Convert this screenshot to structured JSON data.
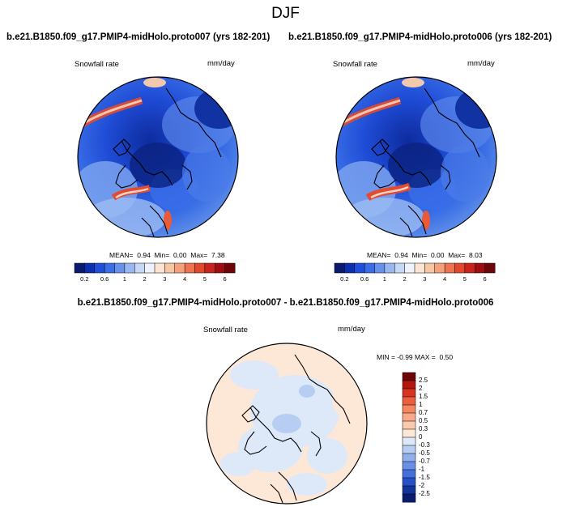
{
  "title": "DJF",
  "panels": [
    {
      "case_title": "b.e21.B1850.f09_g17.PMIP4-midHolo.proto007 (yrs 182-201)",
      "variable": "Snowfall rate",
      "units": "mm/day",
      "stats": {
        "mean_label": "MEAN=",
        "mean": "0.94",
        "min_label": "Min=",
        "min": "0.00",
        "max_label": "Max=",
        "max": "7.38"
      }
    },
    {
      "case_title": "b.e21.B1850.f09_g17.PMIP4-midHolo.proto006 (yrs 182-201)",
      "variable": "Snowfall rate",
      "units": "mm/day",
      "stats": {
        "mean_label": "MEAN=",
        "mean": "0.94",
        "min_label": "Min=",
        "min": "0.00",
        "max_label": "Max=",
        "max": "8.03"
      }
    }
  ],
  "diff_panel": {
    "case_title": "b.e21.B1850.f09_g17.PMIP4-midHolo.proto007 - b.e21.B1850.f09_g17.PMIP4-midHolo.proto006",
    "variable": "Snowfall rate",
    "units": "mm/day",
    "stats": {
      "min_label": "MIN =",
      "min": "-0.99",
      "max_label": "MAX =",
      "max": "0.50"
    }
  },
  "colorbar_abs": {
    "labels": [
      "0.2",
      "0.6",
      "1",
      "2",
      "3",
      "4",
      "5",
      "6"
    ],
    "colors": [
      "#0a1a6e",
      "#0b2fb0",
      "#1e4fd8",
      "#3a6ee8",
      "#6792ec",
      "#98b7f0",
      "#c6d8f6",
      "#eef3fb",
      "#fbe5d2",
      "#f7c6a3",
      "#f4a07a",
      "#ee7350",
      "#e3482f",
      "#c8241c",
      "#a00d10",
      "#6e0509"
    ]
  },
  "colorbar_diff": {
    "labels": [
      "2.5",
      "2",
      "1.5",
      "1",
      "0.7",
      "0.5",
      "0.3",
      "0",
      "-0.3",
      "-0.5",
      "-0.7",
      "-1",
      "-1.5",
      "-2",
      "-2.5"
    ],
    "colors": [
      "#6e0509",
      "#b3150f",
      "#d7331f",
      "#ec5e3c",
      "#f5865d",
      "#f8a987",
      "#fbc9ae",
      "#fde8d8",
      "#dde8f8",
      "#b8cdf2",
      "#8fb0ec",
      "#6890e6",
      "#4370dc",
      "#2550c8",
      "#123399",
      "#0a1a6e"
    ]
  }
}
